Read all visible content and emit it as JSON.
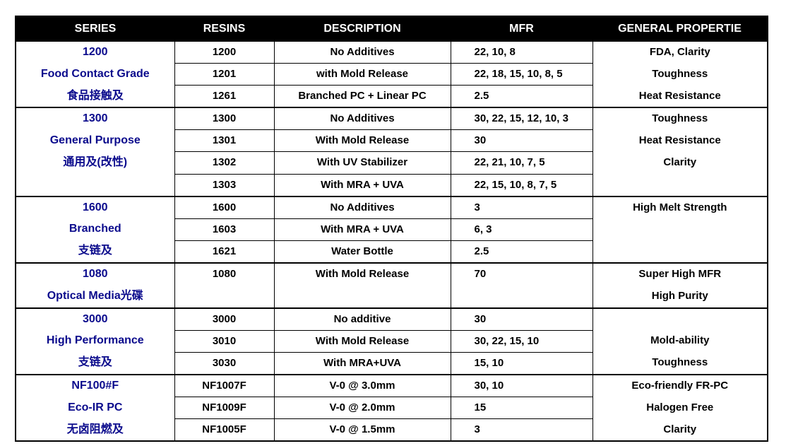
{
  "headers": [
    "SERIES",
    "RESINS",
    "DESCRIPTION",
    "MFR",
    "GENERAL PROPERTIE"
  ],
  "groups": [
    {
      "series": [
        "1200",
        "Food Contact Grade",
        "食品接触及"
      ],
      "properties": [
        "FDA, Clarity",
        "Toughness",
        "Heat Resistance"
      ],
      "rows": [
        {
          "resin": "1200",
          "description": "No Additives",
          "mfr": "22, 10, 8"
        },
        {
          "resin": "1201",
          "description": "with Mold Release",
          "mfr": "22, 18, 15, 10, 8, 5"
        },
        {
          "resin": "1261",
          "description": "Branched PC + Linear PC",
          "mfr": "2.5"
        }
      ]
    },
    {
      "series": [
        "1300",
        "General Purpose",
        "通用及(改性)"
      ],
      "properties": [
        "Toughness",
        "Heat Resistance",
        "Clarity",
        ""
      ],
      "rows": [
        {
          "resin": "1300",
          "description": "No Additives",
          "mfr": "30, 22, 15, 12, 10, 3"
        },
        {
          "resin": "1301",
          "description": "With Mold Release",
          "mfr": "30"
        },
        {
          "resin": "1302",
          "description": "With UV Stabilizer",
          "mfr": "22, 21, 10, 7, 5"
        },
        {
          "resin": "1303",
          "description": "With MRA + UVA",
          "mfr": "22, 15, 10, 8, 7, 5"
        }
      ]
    },
    {
      "series": [
        "1600",
        "Branched",
        "支链及"
      ],
      "properties": [
        "High Melt Strength",
        "",
        ""
      ],
      "rows": [
        {
          "resin": "1600",
          "description": "No Additives",
          "mfr": "3"
        },
        {
          "resin": "1603",
          "description": "With MRA + UVA",
          "mfr": "6, 3"
        },
        {
          "resin": "1621",
          "description": "Water Bottle",
          "mfr": "2.5"
        }
      ]
    },
    {
      "series": [
        "1080",
        "Optical Media光碟"
      ],
      "properties": [
        "Super High MFR",
        "High Purity"
      ],
      "span": 2,
      "rows": [
        {
          "resin": "1080",
          "description": "With Mold Release",
          "mfr": "70"
        }
      ]
    },
    {
      "series": [
        "3000",
        "High Performance",
        "支链及"
      ],
      "properties": [
        "",
        "Mold-ability",
        "Toughness"
      ],
      "rows": [
        {
          "resin": "3000",
          "description": "No additive",
          "mfr": "30"
        },
        {
          "resin": "3010",
          "description": "With Mold Release",
          "mfr": "30, 22, 15, 10"
        },
        {
          "resin": "3030",
          "description": "With MRA+UVA",
          "mfr": "15, 10"
        }
      ]
    },
    {
      "series": [
        "NF100#F",
        "Eco-IR PC",
        "无卤阻燃及"
      ],
      "properties": [
        "Eco-friendly FR-PC",
        "Halogen Free",
        "Clarity"
      ],
      "rows": [
        {
          "resin": "NF1007F",
          "description": "V-0 @ 3.0mm",
          "mfr": "30, 10"
        },
        {
          "resin": "NF1009F",
          "description": "V-0 @ 2.0mm",
          "mfr": "15"
        },
        {
          "resin": "NF1005F",
          "description": "V-0 @ 1.5mm",
          "mfr": "3"
        }
      ]
    }
  ]
}
